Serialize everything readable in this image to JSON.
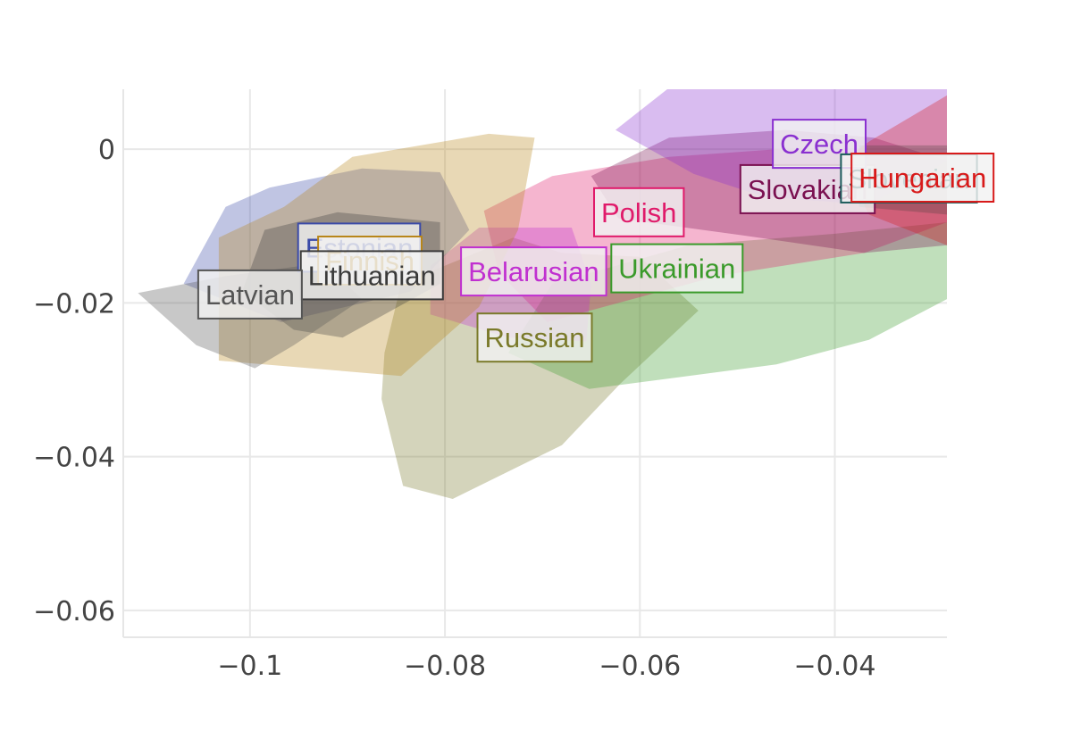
{
  "chart_data": {
    "type": "scatter",
    "title": "",
    "xlabel": "",
    "ylabel": "",
    "xlim": [
      -0.113,
      -0.0285
    ],
    "ylim": [
      -0.0635,
      0.0078
    ],
    "grid": true,
    "xticks": [
      {
        "value": -0.1,
        "label": "−0.1"
      },
      {
        "value": -0.08,
        "label": "−0.08"
      },
      {
        "value": -0.06,
        "label": "−0.06"
      },
      {
        "value": -0.04,
        "label": "−0.04"
      }
    ],
    "yticks": [
      {
        "value": 0,
        "label": "0"
      },
      {
        "value": -0.02,
        "label": "−0.02"
      },
      {
        "value": -0.04,
        "label": "−0.04"
      },
      {
        "value": -0.06,
        "label": "−0.06"
      }
    ],
    "series": [
      {
        "name": "Russian",
        "color": "#7a7a2a",
        "label_pos": [
          -0.0708,
          -0.0245
        ],
        "hull": [
          [
            -0.0845,
            -0.0175
          ],
          [
            -0.073,
            -0.0115
          ],
          [
            -0.068,
            -0.0135
          ],
          [
            -0.06,
            -0.014
          ],
          [
            -0.054,
            -0.021
          ],
          [
            -0.062,
            -0.0305
          ],
          [
            -0.068,
            -0.0385
          ],
          [
            -0.0792,
            -0.0455
          ],
          [
            -0.0843,
            -0.0438
          ],
          [
            -0.0865,
            -0.0325
          ],
          [
            -0.0862,
            -0.0265
          ]
        ]
      },
      {
        "name": "Ukrainian",
        "color": "#3a9a2a",
        "label_pos": [
          -0.0562,
          -0.0155
        ],
        "hull": [
          [
            -0.069,
            -0.0175
          ],
          [
            -0.055,
            -0.0125
          ],
          [
            -0.04,
            -0.011
          ],
          [
            -0.0285,
            -0.0095
          ],
          [
            -0.0285,
            -0.0195
          ],
          [
            -0.0365,
            -0.0248
          ],
          [
            -0.046,
            -0.028
          ],
          [
            -0.0652,
            -0.0312
          ],
          [
            -0.0735,
            -0.0265
          ]
        ]
      },
      {
        "name": "Polish",
        "color": "#e01a6a",
        "label_pos": [
          -0.0601,
          -0.0082
        ],
        "hull": [
          [
            -0.076,
            -0.008
          ],
          [
            -0.069,
            -0.0035
          ],
          [
            -0.057,
            -0.001
          ],
          [
            -0.046,
            0.0
          ],
          [
            -0.035,
            -0.0005
          ],
          [
            -0.0285,
            -0.0005
          ],
          [
            -0.0285,
            -0.0095
          ],
          [
            -0.037,
            -0.0135
          ],
          [
            -0.052,
            -0.0165
          ],
          [
            -0.0695,
            -0.0225
          ],
          [
            -0.0745,
            -0.016
          ]
        ]
      },
      {
        "name": "Slovakian",
        "color": "#7a1050",
        "label_pos": [
          -0.0428,
          -0.0052
        ],
        "hull": [
          [
            -0.065,
            -0.0035
          ],
          [
            -0.057,
            0.0015
          ],
          [
            -0.045,
            0.0025
          ],
          [
            -0.036,
            0.0015
          ],
          [
            -0.0285,
            -0.0015
          ],
          [
            -0.0285,
            -0.0125
          ],
          [
            -0.037,
            -0.0135
          ],
          [
            -0.0495,
            -0.0112
          ],
          [
            -0.0622,
            -0.009
          ]
        ]
      },
      {
        "name": "Czech",
        "color": "#8a30d0",
        "label_pos": [
          -0.0416,
          0.0007
        ],
        "hull": [
          [
            -0.0625,
            0.0025
          ],
          [
            -0.0565,
            0.0085
          ],
          [
            -0.0285,
            0.0085
          ],
          [
            -0.0285,
            -0.0015
          ],
          [
            -0.0365,
            -0.0072
          ],
          [
            -0.0472,
            -0.0062
          ],
          [
            -0.0545,
            -0.0032
          ]
        ]
      },
      {
        "name": "Slovenian",
        "color": "#1a5a5a",
        "label_pos": [
          -0.0324,
          -0.0038
        ],
        "hull": [
          [
            -0.0375,
            0.0005
          ],
          [
            -0.0285,
            0.0005
          ],
          [
            -0.0285,
            -0.0085
          ],
          [
            -0.0375,
            -0.0075
          ]
        ]
      },
      {
        "name": "Hungarian",
        "color": "#d81a1a",
        "label_pos": [
          -0.031,
          -0.0037
        ],
        "hull": [
          [
            -0.0392,
            -0.0015
          ],
          [
            -0.0365,
            0.001
          ],
          [
            -0.0285,
            0.007
          ],
          [
            -0.0285,
            -0.0125
          ],
          [
            -0.0365,
            -0.0085
          ]
        ]
      },
      {
        "name": "Belarusian",
        "color": "#c030d0",
        "label_pos": [
          -0.0709,
          -0.0159
        ],
        "hull": [
          [
            -0.0815,
            -0.0152
          ],
          [
            -0.0765,
            -0.0102
          ],
          [
            -0.067,
            -0.0102
          ],
          [
            -0.065,
            -0.0175
          ],
          [
            -0.0655,
            -0.025
          ],
          [
            -0.0735,
            -0.0245
          ],
          [
            -0.0815,
            -0.0215
          ]
        ]
      },
      {
        "name": "Estonian",
        "color": "#3a4aa8",
        "label_pos": [
          -0.0888,
          -0.0128
        ],
        "hull": [
          [
            -0.1068,
            -0.0175
          ],
          [
            -0.1025,
            -0.0075
          ],
          [
            -0.098,
            -0.005
          ],
          [
            -0.0885,
            -0.0025
          ],
          [
            -0.0805,
            -0.003
          ],
          [
            -0.0775,
            -0.0105
          ],
          [
            -0.0835,
            -0.0185
          ],
          [
            -0.0968,
            -0.0225
          ]
        ]
      },
      {
        "name": "Finnish",
        "color": "#b8861a",
        "label_pos": [
          -0.0877,
          -0.0145
        ],
        "hull": [
          [
            -0.1032,
            -0.0115
          ],
          [
            -0.0965,
            -0.0075
          ],
          [
            -0.0895,
            -0.001
          ],
          [
            -0.0755,
            0.002
          ],
          [
            -0.0708,
            0.0015
          ],
          [
            -0.0725,
            -0.0105
          ],
          [
            -0.0765,
            -0.0205
          ],
          [
            -0.0845,
            -0.0295
          ],
          [
            -0.1032,
            -0.0275
          ]
        ]
      },
      {
        "name": "Lithuanian",
        "color": "#3a3a3a",
        "label_pos": [
          -0.0875,
          -0.0164
        ],
        "hull": [
          [
            -0.1008,
            -0.0185
          ],
          [
            -0.0985,
            -0.0105
          ],
          [
            -0.091,
            -0.0082
          ],
          [
            -0.0805,
            -0.0095
          ],
          [
            -0.0805,
            -0.0175
          ],
          [
            -0.0905,
            -0.0245
          ],
          [
            -0.0955,
            -0.0235
          ]
        ]
      },
      {
        "name": "Latvian",
        "color": "#555555",
        "label_pos": [
          -0.1,
          -0.0189
        ],
        "hull": [
          [
            -0.1115,
            -0.0187
          ],
          [
            -0.1025,
            -0.0165
          ],
          [
            -0.0925,
            -0.0148
          ],
          [
            -0.0885,
            -0.0195
          ],
          [
            -0.0955,
            -0.0255
          ],
          [
            -0.0995,
            -0.0285
          ],
          [
            -0.1055,
            -0.0255
          ]
        ]
      }
    ]
  }
}
